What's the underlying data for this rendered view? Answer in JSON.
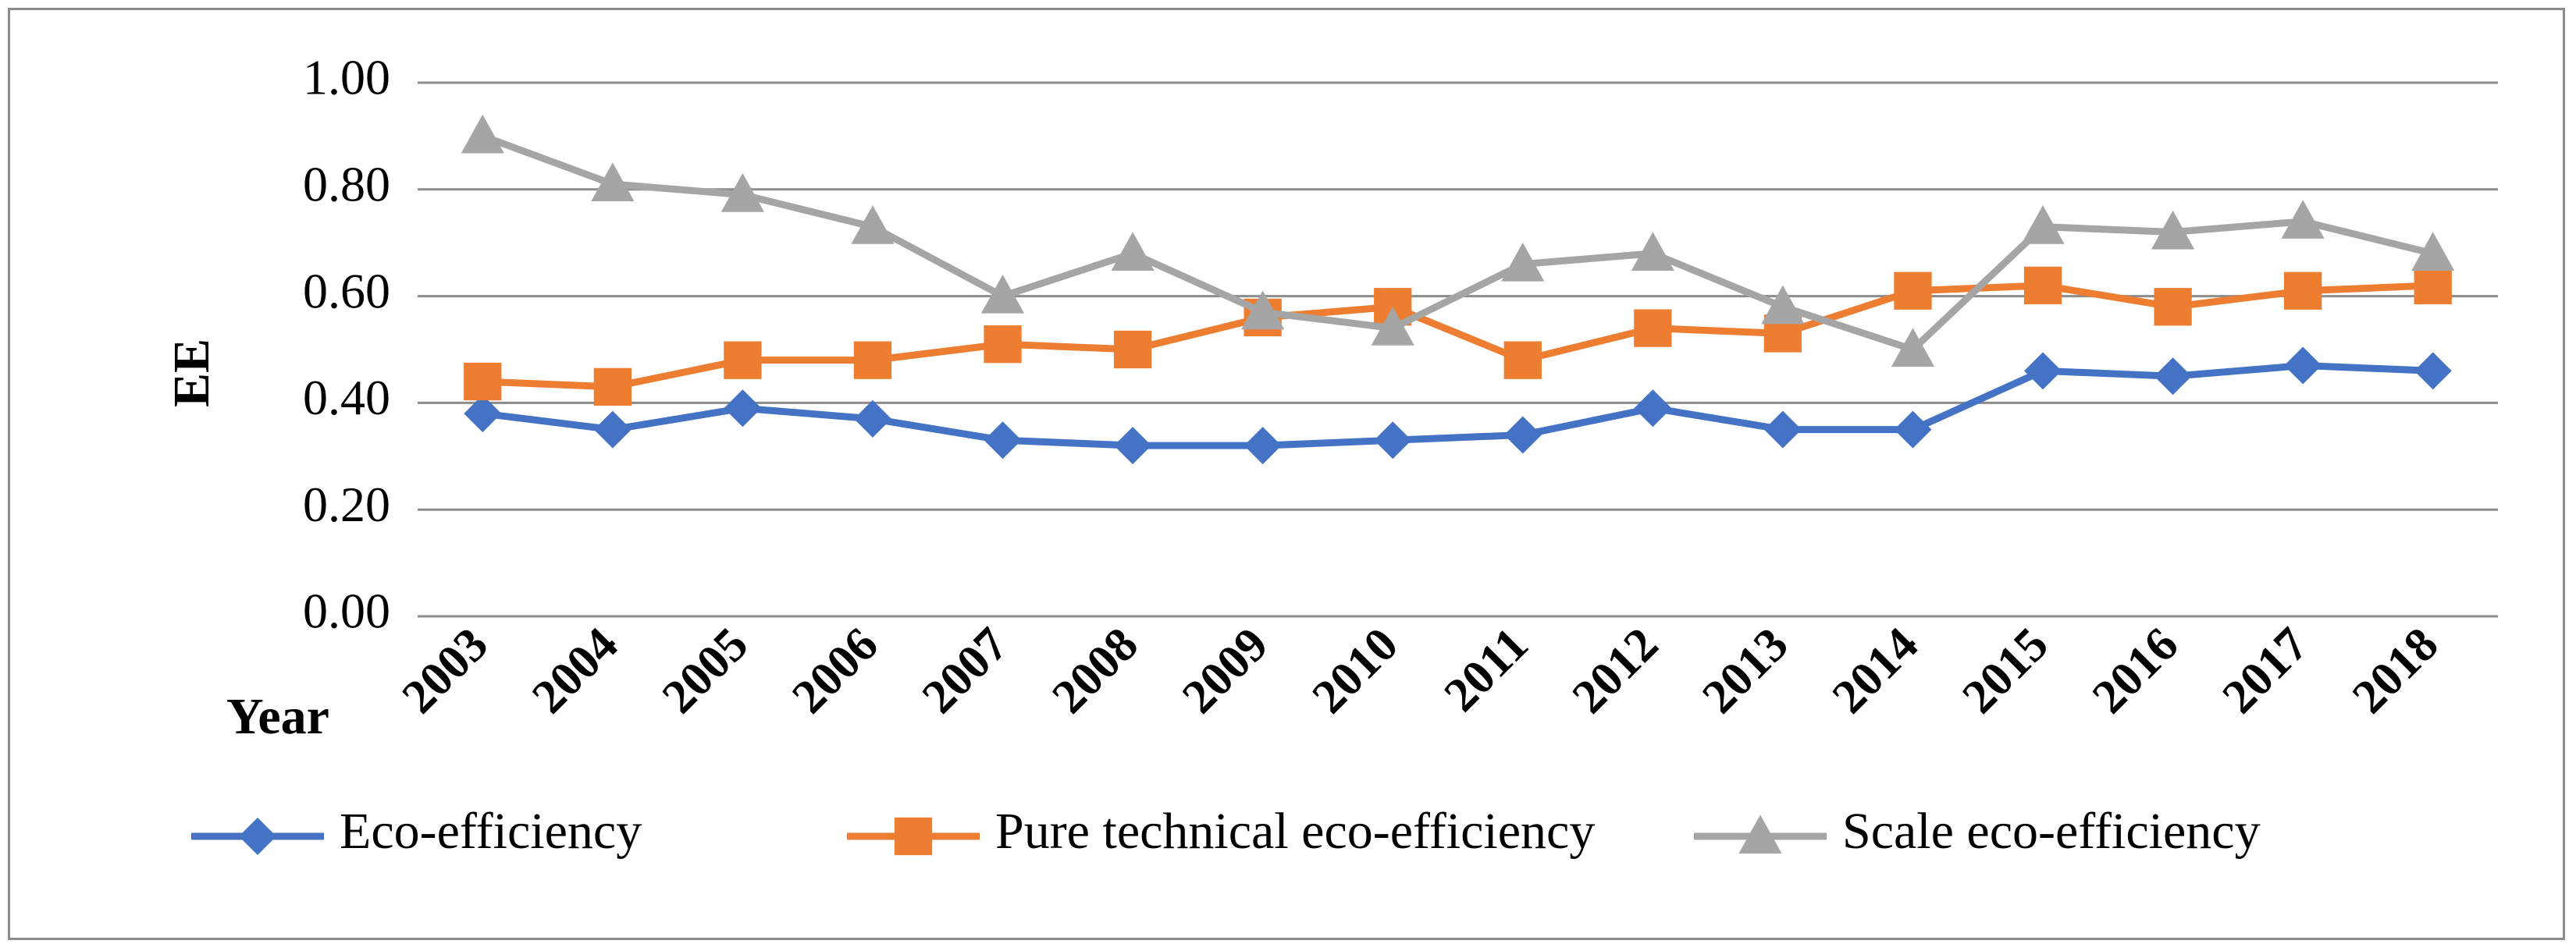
{
  "chart_data": {
    "type": "line",
    "title": "",
    "xlabel": "Year",
    "ylabel": "EE",
    "ylim": [
      0,
      1
    ],
    "y_ticks": [
      "0.00",
      "0.20",
      "0.40",
      "0.60",
      "0.80",
      "1.00"
    ],
    "categories": [
      "2003",
      "2004",
      "2005",
      "2006",
      "2007",
      "2008",
      "2009",
      "2010",
      "2011",
      "2012",
      "2013",
      "2014",
      "2015",
      "2016",
      "2017",
      "2018"
    ],
    "grid": true,
    "legend_position": "bottom",
    "series": [
      {
        "name": "Eco-efficiency",
        "color": "#4472C4",
        "marker": "diamond",
        "values": [
          0.38,
          0.35,
          0.39,
          0.37,
          0.33,
          0.32,
          0.32,
          0.33,
          0.34,
          0.39,
          0.35,
          0.35,
          0.46,
          0.45,
          0.47,
          0.46
        ]
      },
      {
        "name": "Pure technical eco-efficiency",
        "color": "#ED7D31",
        "marker": "square",
        "values": [
          0.44,
          0.43,
          0.48,
          0.48,
          0.51,
          0.5,
          0.56,
          0.58,
          0.48,
          0.54,
          0.53,
          0.61,
          0.62,
          0.58,
          0.61,
          0.62
        ]
      },
      {
        "name": "Scale eco-efficiency",
        "color": "#A5A5A5",
        "marker": "triangle",
        "values": [
          0.9,
          0.81,
          0.79,
          0.73,
          0.6,
          0.68,
          0.57,
          0.54,
          0.66,
          0.68,
          0.58,
          0.5,
          0.73,
          0.72,
          0.74,
          0.68
        ]
      }
    ]
  }
}
